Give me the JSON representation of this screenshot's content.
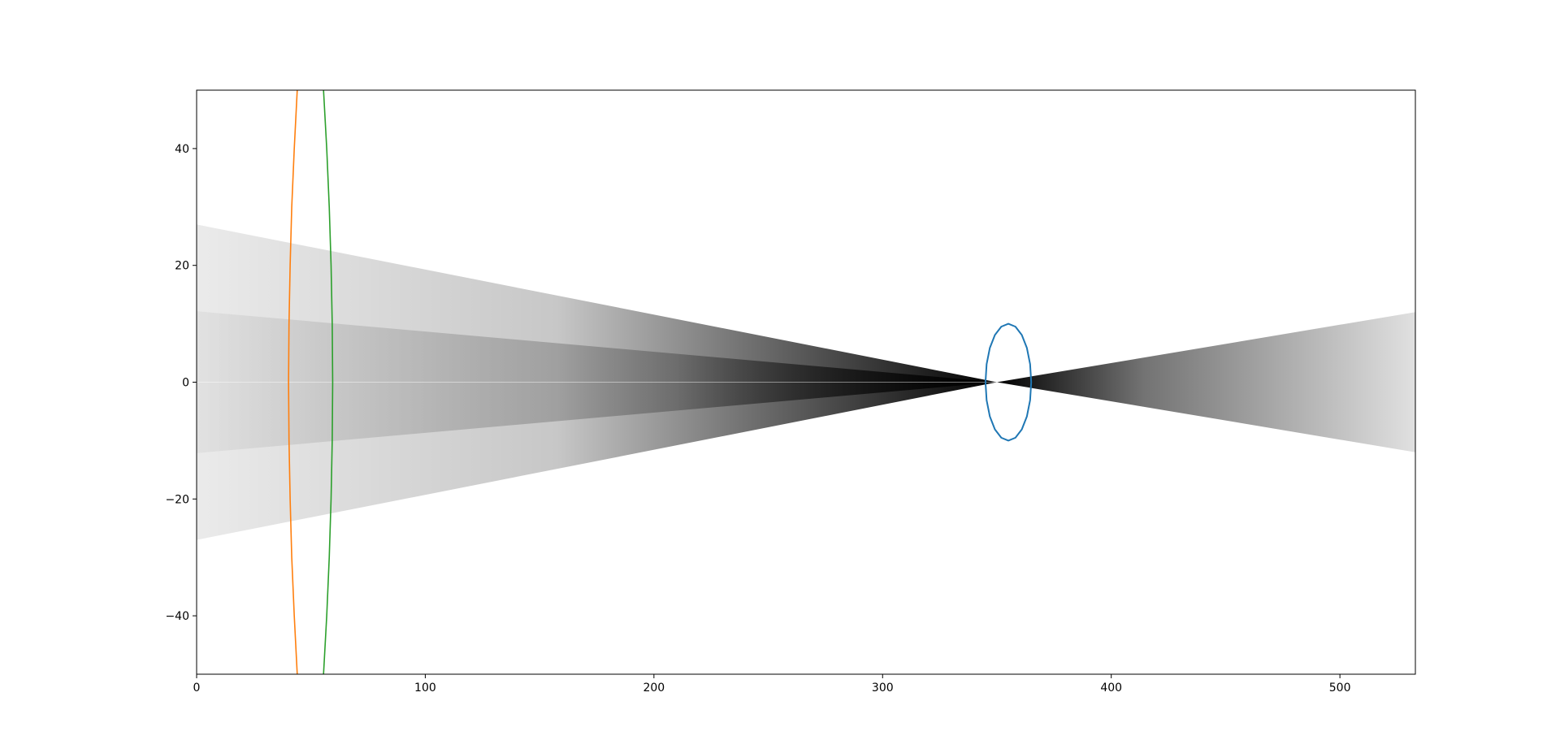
{
  "chart_data": {
    "type": "line",
    "title": "",
    "xlabel": "",
    "ylabel": "",
    "xlim": [
      0,
      533
    ],
    "ylim": [
      -50,
      50
    ],
    "x_ticks": [
      0,
      100,
      200,
      300,
      400,
      500
    ],
    "y_ticks": [
      -40,
      -20,
      0,
      20,
      40
    ],
    "x_tick_labels": [
      "0",
      "100",
      "200",
      "300",
      "400",
      "500"
    ],
    "y_tick_labels": [
      "−40",
      "−20",
      "0",
      "20",
      "40"
    ],
    "grid": false,
    "legend": "none",
    "background_image": {
      "type": "grayscale ray-bundle density",
      "converges_near": [
        350,
        0
      ],
      "left_half_height_at_x0": 27,
      "right_half_height_at_xmax": 12
    },
    "series": [
      {
        "color": "#1f77b4",
        "shape": "ellipse",
        "center": [
          355,
          0
        ],
        "radius_x": 10,
        "radius_y": 10,
        "points": [
          [
            365,
            0
          ],
          [
            364.51,
            3.09
          ],
          [
            363.09,
            5.88
          ],
          [
            360.88,
            8.09
          ],
          [
            358.09,
            9.51
          ],
          [
            355,
            10
          ],
          [
            351.91,
            9.51
          ],
          [
            349.12,
            8.09
          ],
          [
            346.91,
            5.88
          ],
          [
            345.49,
            3.09
          ],
          [
            345,
            0
          ],
          [
            345.49,
            -3.09
          ],
          [
            346.91,
            -5.88
          ],
          [
            349.12,
            -8.09
          ],
          [
            351.91,
            -9.51
          ],
          [
            355,
            -10
          ],
          [
            358.09,
            -9.51
          ],
          [
            360.88,
            -8.09
          ],
          [
            363.09,
            -5.88
          ],
          [
            364.51,
            -3.09
          ],
          [
            365,
            0
          ]
        ]
      },
      {
        "color": "#ff7f0e",
        "shape": "arc",
        "points": [
          [
            44,
            50
          ],
          [
            42.7,
            40
          ],
          [
            41.6,
            30
          ],
          [
            40.9,
            20
          ],
          [
            40.4,
            10
          ],
          [
            40.2,
            0
          ],
          [
            40.4,
            -10
          ],
          [
            40.9,
            -20
          ],
          [
            41.6,
            -30
          ],
          [
            42.7,
            -40
          ],
          [
            44,
            -50
          ]
        ]
      },
      {
        "color": "#2ca02c",
        "shape": "arc",
        "points": [
          [
            55.5,
            50
          ],
          [
            56.9,
            40
          ],
          [
            58,
            30
          ],
          [
            58.8,
            20
          ],
          [
            59.3,
            10
          ],
          [
            59.5,
            0
          ],
          [
            59.3,
            -10
          ],
          [
            58.8,
            -20
          ],
          [
            58,
            -30
          ],
          [
            56.9,
            -40
          ],
          [
            55.5,
            -50
          ]
        ]
      }
    ]
  }
}
